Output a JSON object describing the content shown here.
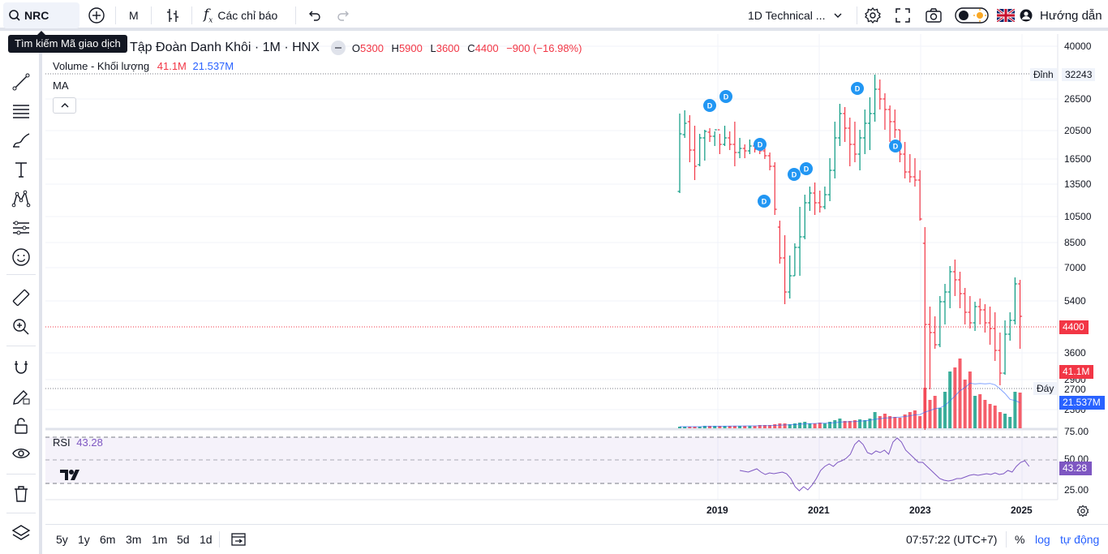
{
  "toolbar": {
    "symbol": "NRC",
    "interval": "M",
    "indicators_label": "Các chỉ báo",
    "layout_name": "1D Technical ...",
    "guide_label": "Hướng dẫn"
  },
  "tooltip": {
    "text": "Tìm kiếm Mã giao dịch"
  },
  "legend": {
    "title": "Tập Đoàn Danh Khôi · 1M · HNX",
    "open_lbl": "O",
    "open": "5300",
    "high_lbl": "H",
    "high": "5900",
    "low_lbl": "L",
    "low": "3600",
    "close_lbl": "C",
    "close": "4400",
    "change": "−900 (−16.98%)",
    "volume_label": "Volume - Khối lượng",
    "volume_value": "41.1M",
    "volume_ma": "21.537M",
    "ma_label": "MA",
    "rsi_label": "RSI",
    "rsi_value": "43.28"
  },
  "price_axis": {
    "ticks": [
      "40000",
      "26500",
      "20500",
      "16500",
      "13500",
      "10500",
      "8500",
      "7000",
      "5400",
      "3600",
      "2900",
      "2300"
    ],
    "peak_label": "Đỉnh",
    "peak_value": "32243",
    "trough_label": "Đáy",
    "trough_value": "2700",
    "last_price": "4400",
    "volume_tag": "41.1M",
    "volume_ma_tag": "21.537M",
    "rsi_ticks": [
      "75.00",
      "50.00",
      "25.00"
    ],
    "rsi_tag": "43.28"
  },
  "time_axis": {
    "ticks": [
      "2019",
      "2021",
      "2023",
      "2025"
    ]
  },
  "bottombar": {
    "ranges": [
      "5y",
      "1y",
      "6m",
      "3m",
      "1m",
      "5d",
      "1d"
    ],
    "clock": "07:57:22 (UTC+7)",
    "percent": "%",
    "log": "log",
    "auto": "tự động"
  },
  "colors": {
    "up": "#089981",
    "down": "#f23645",
    "accent": "#2962ff",
    "rsi": "#7e57c2",
    "dividend": "#2196f3"
  },
  "chart_data": {
    "type": "ohlc",
    "title": "Tập Đoàn Danh Khôi · 1M · HNX",
    "peak": 32243,
    "trough": 2700,
    "last": {
      "open": 5300,
      "high": 5900,
      "low": 3600,
      "close": 4400
    },
    "rsi_last": 43.28,
    "volume_last": "41.1M",
    "volume_ma_last": "21.537M",
    "dividend_marks": 9
  }
}
